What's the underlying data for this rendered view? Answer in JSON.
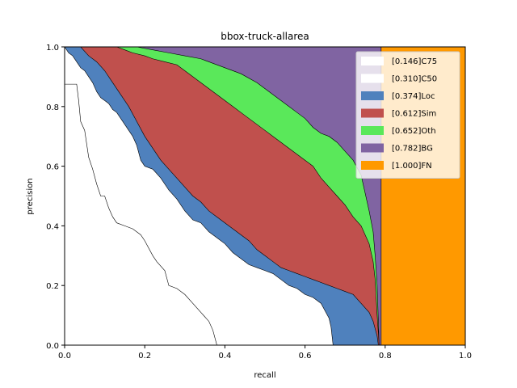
{
  "chart_data": {
    "type": "area",
    "title": "bbox-truck-allarea",
    "xlabel": "recall",
    "ylabel": "precision",
    "xlim": [
      0,
      1
    ],
    "ylim": [
      0,
      1
    ],
    "xticks": [
      "0.0",
      "0.2",
      "0.4",
      "0.6",
      "0.8",
      "1.0"
    ],
    "yticks": [
      "0.0",
      "0.2",
      "0.4",
      "0.6",
      "0.8",
      "1.0"
    ],
    "grid": false,
    "legend_position": "top-right",
    "series": [
      {
        "name": "[0.146]C75",
        "color": "#ffffff",
        "points": [
          [
            0,
            0.875
          ],
          [
            0.03,
            0.875
          ],
          [
            0.035,
            0.82
          ],
          [
            0.04,
            0.75
          ],
          [
            0.05,
            0.72
          ],
          [
            0.06,
            0.63
          ],
          [
            0.07,
            0.59
          ],
          [
            0.08,
            0.54
          ],
          [
            0.09,
            0.5
          ],
          [
            0.1,
            0.5
          ],
          [
            0.11,
            0.46
          ],
          [
            0.12,
            0.43
          ],
          [
            0.13,
            0.41
          ],
          [
            0.15,
            0.4
          ],
          [
            0.17,
            0.39
          ],
          [
            0.19,
            0.37
          ],
          [
            0.2,
            0.35
          ],
          [
            0.22,
            0.3
          ],
          [
            0.23,
            0.28
          ],
          [
            0.25,
            0.25
          ],
          [
            0.26,
            0.2
          ],
          [
            0.28,
            0.19
          ],
          [
            0.3,
            0.17
          ],
          [
            0.32,
            0.14
          ],
          [
            0.34,
            0.11
          ],
          [
            0.36,
            0.08
          ],
          [
            0.37,
            0.05
          ],
          [
            0.38,
            0.0
          ]
        ]
      },
      {
        "name": "[0.310]C50",
        "color": "#ffffff",
        "points": [
          [
            0,
            1.0
          ],
          [
            0.01,
            0.98
          ],
          [
            0.02,
            0.97
          ],
          [
            0.03,
            0.95
          ],
          [
            0.04,
            0.93
          ],
          [
            0.05,
            0.92
          ],
          [
            0.06,
            0.9
          ],
          [
            0.07,
            0.88
          ],
          [
            0.08,
            0.85
          ],
          [
            0.09,
            0.83
          ],
          [
            0.1,
            0.82
          ],
          [
            0.11,
            0.81
          ],
          [
            0.12,
            0.79
          ],
          [
            0.13,
            0.78
          ],
          [
            0.14,
            0.76
          ],
          [
            0.15,
            0.74
          ],
          [
            0.16,
            0.72
          ],
          [
            0.17,
            0.7
          ],
          [
            0.18,
            0.67
          ],
          [
            0.19,
            0.62
          ],
          [
            0.2,
            0.6
          ],
          [
            0.22,
            0.59
          ],
          [
            0.24,
            0.56
          ],
          [
            0.26,
            0.52
          ],
          [
            0.28,
            0.49
          ],
          [
            0.3,
            0.45
          ],
          [
            0.32,
            0.42
          ],
          [
            0.34,
            0.41
          ],
          [
            0.36,
            0.38
          ],
          [
            0.38,
            0.36
          ],
          [
            0.4,
            0.34
          ],
          [
            0.42,
            0.31
          ],
          [
            0.44,
            0.29
          ],
          [
            0.46,
            0.27
          ],
          [
            0.48,
            0.26
          ],
          [
            0.5,
            0.25
          ],
          [
            0.52,
            0.24
          ],
          [
            0.54,
            0.22
          ],
          [
            0.56,
            0.2
          ],
          [
            0.58,
            0.19
          ],
          [
            0.6,
            0.17
          ],
          [
            0.62,
            0.16
          ],
          [
            0.64,
            0.14
          ],
          [
            0.66,
            0.09
          ],
          [
            0.665,
            0.06
          ],
          [
            0.67,
            0.0
          ]
        ]
      },
      {
        "name": "[0.374]Loc",
        "color": "#4f81bd",
        "points": [
          [
            0,
            1.0
          ],
          [
            0.04,
            1.0
          ],
          [
            0.06,
            0.97
          ],
          [
            0.08,
            0.95
          ],
          [
            0.1,
            0.92
          ],
          [
            0.12,
            0.88
          ],
          [
            0.14,
            0.84
          ],
          [
            0.16,
            0.8
          ],
          [
            0.18,
            0.75
          ],
          [
            0.2,
            0.7
          ],
          [
            0.22,
            0.66
          ],
          [
            0.24,
            0.62
          ],
          [
            0.26,
            0.59
          ],
          [
            0.28,
            0.56
          ],
          [
            0.3,
            0.53
          ],
          [
            0.32,
            0.5
          ],
          [
            0.34,
            0.48
          ],
          [
            0.36,
            0.45
          ],
          [
            0.38,
            0.43
          ],
          [
            0.4,
            0.41
          ],
          [
            0.42,
            0.39
          ],
          [
            0.44,
            0.37
          ],
          [
            0.46,
            0.35
          ],
          [
            0.48,
            0.32
          ],
          [
            0.5,
            0.3
          ],
          [
            0.52,
            0.28
          ],
          [
            0.54,
            0.26
          ],
          [
            0.56,
            0.25
          ],
          [
            0.58,
            0.24
          ],
          [
            0.6,
            0.23
          ],
          [
            0.62,
            0.22
          ],
          [
            0.64,
            0.21
          ],
          [
            0.66,
            0.2
          ],
          [
            0.68,
            0.19
          ],
          [
            0.7,
            0.18
          ],
          [
            0.72,
            0.17
          ],
          [
            0.74,
            0.14
          ],
          [
            0.76,
            0.11
          ],
          [
            0.77,
            0.08
          ],
          [
            0.78,
            0.03
          ],
          [
            0.783,
            0.0
          ]
        ]
      },
      {
        "name": "[0.612]Sim",
        "color": "#c0504d",
        "points": [
          [
            0,
            1.0
          ],
          [
            0.13,
            1.0
          ],
          [
            0.15,
            0.99
          ],
          [
            0.17,
            0.98
          ],
          [
            0.2,
            0.97
          ],
          [
            0.22,
            0.96
          ],
          [
            0.25,
            0.95
          ],
          [
            0.28,
            0.94
          ],
          [
            0.3,
            0.92
          ],
          [
            0.32,
            0.9
          ],
          [
            0.34,
            0.88
          ],
          [
            0.36,
            0.86
          ],
          [
            0.38,
            0.84
          ],
          [
            0.4,
            0.82
          ],
          [
            0.42,
            0.8
          ],
          [
            0.44,
            0.78
          ],
          [
            0.46,
            0.76
          ],
          [
            0.48,
            0.74
          ],
          [
            0.5,
            0.72
          ],
          [
            0.52,
            0.7
          ],
          [
            0.54,
            0.68
          ],
          [
            0.56,
            0.66
          ],
          [
            0.58,
            0.64
          ],
          [
            0.6,
            0.62
          ],
          [
            0.62,
            0.6
          ],
          [
            0.64,
            0.56
          ],
          [
            0.66,
            0.53
          ],
          [
            0.68,
            0.5
          ],
          [
            0.7,
            0.47
          ],
          [
            0.72,
            0.43
          ],
          [
            0.74,
            0.4
          ],
          [
            0.76,
            0.34
          ],
          [
            0.77,
            0.28
          ],
          [
            0.775,
            0.22
          ],
          [
            0.78,
            0.1
          ],
          [
            0.785,
            0.0
          ]
        ]
      },
      {
        "name": "[0.652]Oth",
        "color": "#5ae85a",
        "points": [
          [
            0,
            1.0
          ],
          [
            0.18,
            1.0
          ],
          [
            0.22,
            0.99
          ],
          [
            0.26,
            0.98
          ],
          [
            0.3,
            0.97
          ],
          [
            0.34,
            0.96
          ],
          [
            0.36,
            0.95
          ],
          [
            0.4,
            0.93
          ],
          [
            0.44,
            0.91
          ],
          [
            0.48,
            0.88
          ],
          [
            0.5,
            0.86
          ],
          [
            0.52,
            0.84
          ],
          [
            0.54,
            0.82
          ],
          [
            0.56,
            0.8
          ],
          [
            0.58,
            0.78
          ],
          [
            0.6,
            0.76
          ],
          [
            0.62,
            0.73
          ],
          [
            0.64,
            0.71
          ],
          [
            0.66,
            0.7
          ],
          [
            0.68,
            0.68
          ],
          [
            0.7,
            0.65
          ],
          [
            0.72,
            0.62
          ],
          [
            0.74,
            0.57
          ],
          [
            0.75,
            0.51
          ],
          [
            0.76,
            0.45
          ],
          [
            0.77,
            0.38
          ],
          [
            0.775,
            0.3
          ],
          [
            0.78,
            0.2
          ],
          [
            0.785,
            0.0
          ]
        ]
      },
      {
        "name": "[0.782]BG",
        "color": "#8064a2",
        "points": [
          [
            0,
            1.0
          ],
          [
            0.79,
            1.0
          ],
          [
            0.79,
            0.0
          ]
        ]
      },
      {
        "name": "[1.000]FN",
        "color": "#ff9900",
        "points": [
          [
            0,
            1.0
          ],
          [
            1.0,
            1.0
          ],
          [
            1.0,
            0.0
          ]
        ]
      }
    ]
  }
}
